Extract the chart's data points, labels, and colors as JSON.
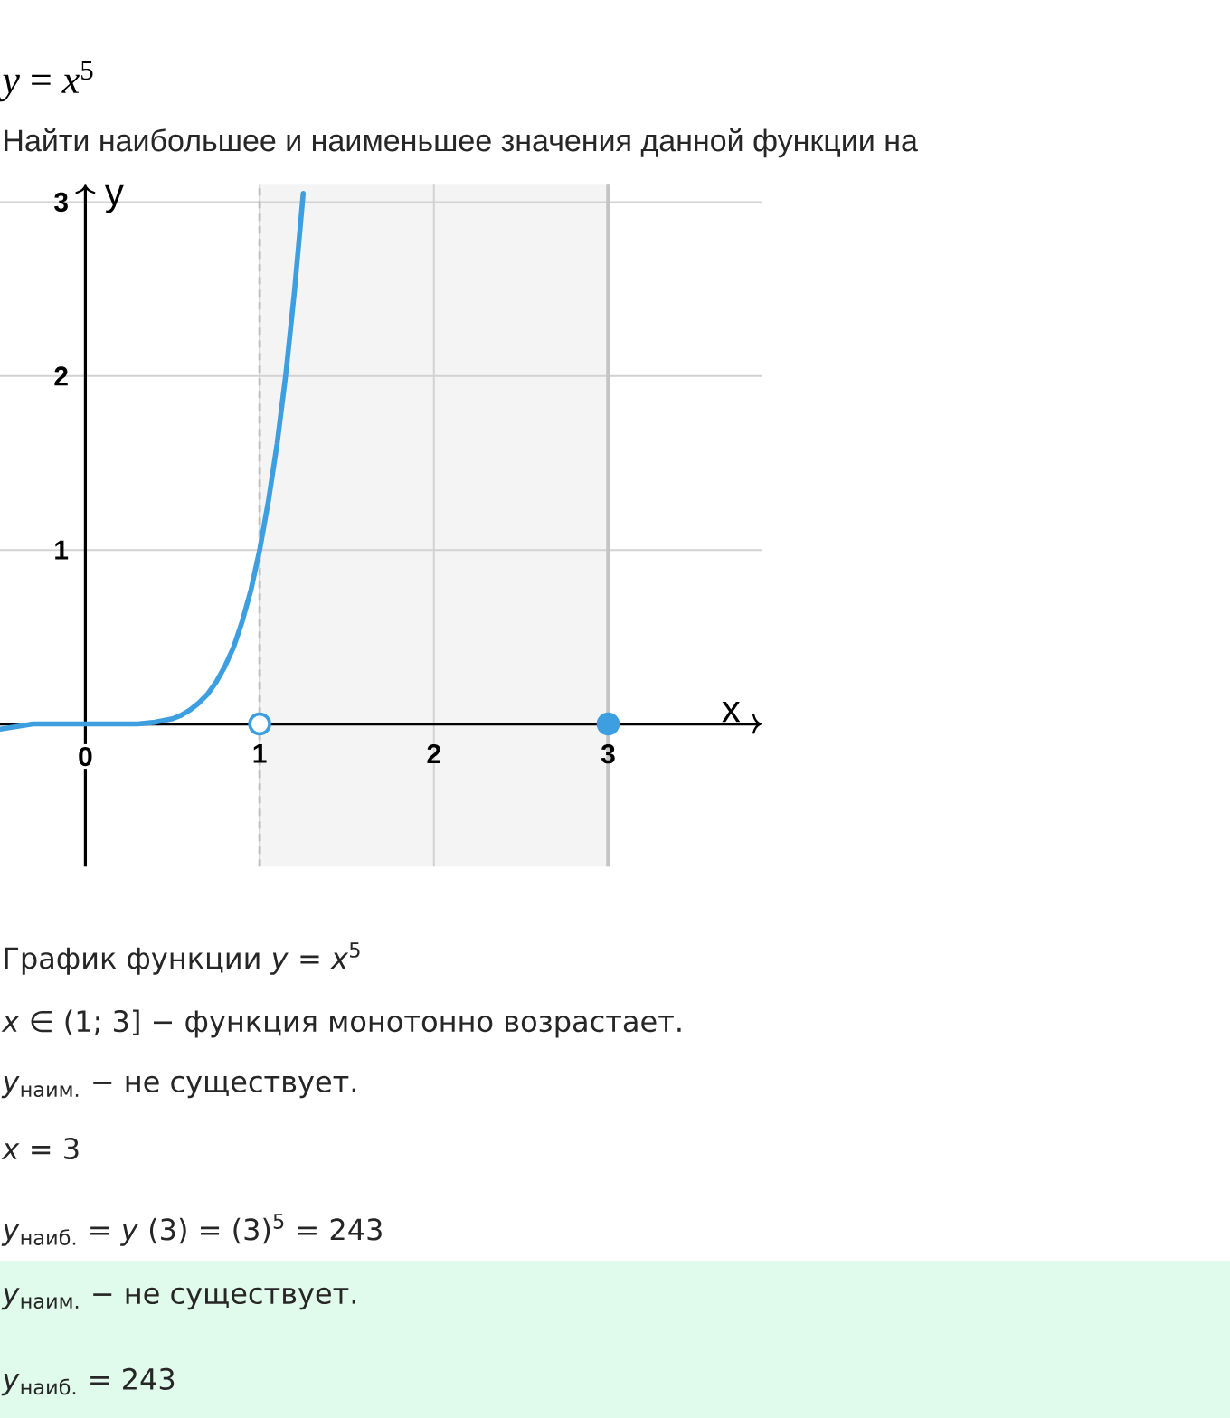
{
  "chart_data": {
    "type": "line",
    "title": "*y* = *x*$^{5}$",
    "subtitle": "Найти наибольшее и наименьшее значения данной функции на",
    "xlabel": "x",
    "ylabel": "y",
    "series": [
      {
        "type": "line",
        "color": "#3d9fe0",
        "x": [
          -0.49,
          -0.3,
          0,
          0.3,
          0.4,
          0.5,
          0.55,
          0.6,
          0.65,
          0.7,
          0.75,
          0.8,
          0.85,
          0.9,
          0.95,
          1,
          1.05,
          1.1,
          1.15,
          1.2,
          1.25
        ],
        "values": [
          -0.03,
          0,
          0,
          0,
          0.01,
          0.03,
          0.05,
          0.08,
          0.12,
          0.17,
          0.24,
          0.33,
          0.44,
          0.59,
          0.77,
          1,
          1.28,
          1.61,
          2.01,
          2.49,
          3.05
        ]
      },
      {
        "type": "scatter",
        "marker": "open circle",
        "color": "#3d9fe0",
        "x": [
          1
        ],
        "values": [
          0
        ]
      },
      {
        "type": "scatter",
        "marker": "circle",
        "color": "#3d9fe0",
        "x": [
          3
        ],
        "values": [
          0
        ]
      }
    ],
    "xlim": [
      -0.49,
      3.88
    ],
    "ylim": [
      -0.82,
      3.1
    ],
    "xticks": [
      0,
      1,
      2,
      3
    ],
    "yticks": [
      1,
      2,
      3
    ],
    "grid": true,
    "ref_lines": [
      {
        "axis": "x",
        "value": 1,
        "color": "#bdbdbd",
        "line_style": "dashed"
      },
      {
        "axis": "x",
        "value": 3,
        "color": "#c4c4c4",
        "line_style": "solid"
      }
    ],
    "bands": [
      {
        "axis": "x",
        "from": 1,
        "to": 3,
        "color": "#f4f4f4"
      }
    ],
    "annotations": [
      "График функции *y* = *x*$^{5}$",
      "*x* ∈ (1; 3] − функция монотонно возрастает.",
      "*y*$_{наим.}$ − не существует.",
      "*x* = 3",
      "*y*$_{наиб.}$ = *y* (3) = (3)$^{5}$ = 243",
      "*y*$_{наим.}$ − не существует.",
      "*y*$_{наиб.}$ = 243"
    ]
  }
}
